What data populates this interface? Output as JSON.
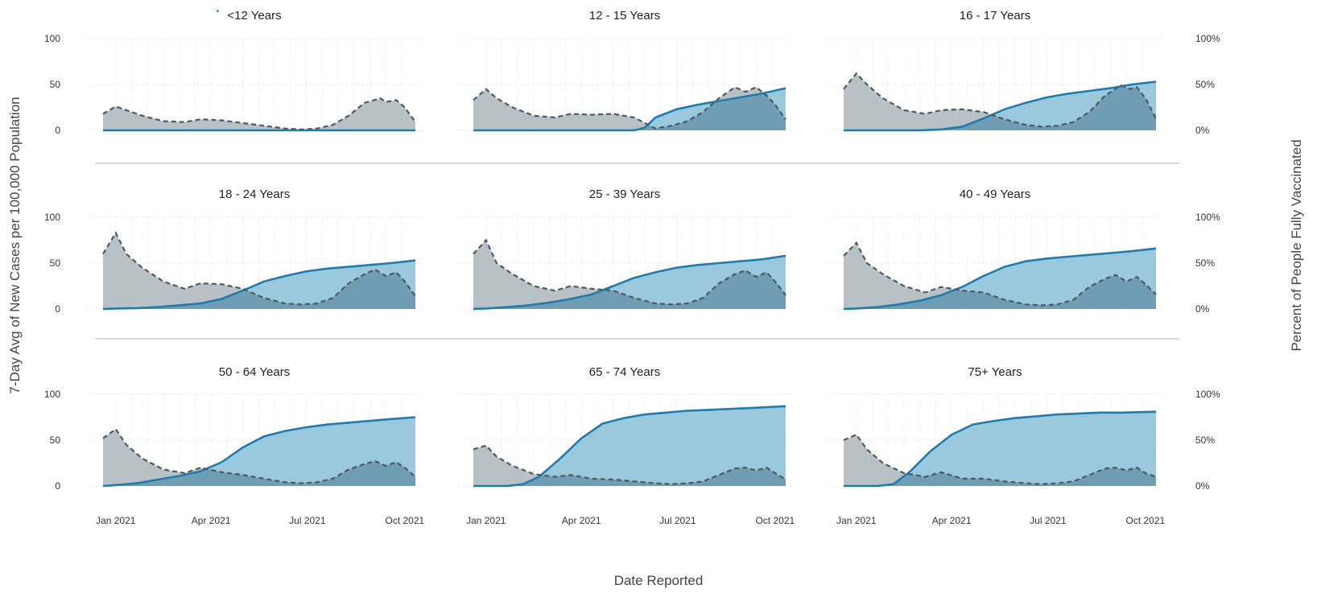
{
  "chart_data": {
    "type": "area",
    "x_axis_title": "Date Reported",
    "y_left_title": "7-Day Avg of New Cases per 100,000 Population",
    "y_right_title": "Percent of People Fully Vaccinated",
    "x_ticks": [
      "Jan 2021",
      "Apr 2021",
      "Jul 2021",
      "Oct 2021"
    ],
    "x_tick_positions": [
      0,
      90,
      181,
      273
    ],
    "y_left_ticks": [
      "0",
      "50",
      "100"
    ],
    "y_right_ticks": [
      "0%",
      "50%",
      "100%"
    ],
    "ylim_cases": [
      0,
      100
    ],
    "ylim_vaccinated_pct": [
      0,
      100
    ],
    "x_day_range": [
      -12,
      283
    ],
    "colors": {
      "cases_fill": "#aab6bc",
      "cases_line": "#4d5a62",
      "vacc_fill": "#8fc3da",
      "vacc_line": "#1f7cad",
      "overlap_fill": "#6f9db4",
      "grid": "#e6e6e6",
      "separator": "#c8c8c8"
    },
    "grid": true,
    "series_note": "x values are days since 1 Jan 2021",
    "panels": [
      {
        "title": "<12 Years",
        "title_marker": "*",
        "cases": {
          "x": [
            -12,
            0,
            10,
            25,
            45,
            65,
            80,
            100,
            120,
            140,
            160,
            175,
            190,
            205,
            220,
            235,
            250,
            255,
            265,
            273,
            283
          ],
          "y": [
            18,
            26,
            22,
            16,
            10,
            9,
            12,
            11,
            8,
            5,
            2,
            1,
            2,
            6,
            16,
            30,
            35,
            31,
            33,
            25,
            9
          ]
        },
        "vacc": {
          "x": [
            -12,
            283
          ],
          "y": [
            0,
            0
          ]
        }
      },
      {
        "title": "12 - 15 Years",
        "cases": {
          "x": [
            -12,
            0,
            10,
            25,
            45,
            65,
            80,
            100,
            120,
            140,
            150,
            160,
            175,
            190,
            205,
            220,
            235,
            245,
            255,
            265,
            273,
            283
          ],
          "y": [
            33,
            45,
            35,
            25,
            16,
            14,
            18,
            17,
            18,
            14,
            8,
            2,
            5,
            10,
            20,
            35,
            47,
            42,
            47,
            38,
            28,
            12
          ]
        },
        "vacc": {
          "x": [
            -12,
            140,
            150,
            160,
            180,
            200,
            220,
            240,
            260,
            283
          ],
          "y": [
            0,
            0,
            3,
            14,
            23,
            28,
            32,
            36,
            40,
            46
          ]
        }
      },
      {
        "title": "16 - 17 Years",
        "cases": {
          "x": [
            -12,
            0,
            10,
            25,
            45,
            65,
            80,
            100,
            120,
            140,
            160,
            175,
            190,
            205,
            220,
            235,
            250,
            258,
            265,
            273,
            283
          ],
          "y": [
            45,
            62,
            50,
            35,
            22,
            18,
            22,
            23,
            20,
            12,
            6,
            4,
            5,
            9,
            20,
            38,
            49,
            45,
            47,
            35,
            13
          ]
        },
        "vacc": {
          "x": [
            -12,
            60,
            80,
            100,
            120,
            140,
            160,
            180,
            200,
            220,
            240,
            260,
            283
          ],
          "y": [
            0,
            0,
            1,
            4,
            13,
            23,
            30,
            36,
            40,
            43,
            46,
            50,
            53
          ]
        }
      },
      {
        "title": "18 - 24 Years",
        "cases": {
          "x": [
            -12,
            0,
            10,
            25,
            45,
            65,
            80,
            100,
            120,
            140,
            160,
            175,
            190,
            205,
            220,
            235,
            245,
            255,
            265,
            273,
            283
          ],
          "y": [
            60,
            83,
            60,
            45,
            30,
            22,
            28,
            27,
            22,
            12,
            6,
            5,
            6,
            12,
            28,
            38,
            43,
            36,
            40,
            30,
            14
          ]
        },
        "vacc": {
          "x": [
            -12,
            0,
            20,
            40,
            60,
            80,
            100,
            120,
            140,
            160,
            180,
            200,
            220,
            240,
            260,
            283
          ],
          "y": [
            0,
            0.5,
            1,
            2,
            4,
            6,
            11,
            20,
            30,
            36,
            41,
            44,
            46,
            48,
            50,
            53
          ]
        }
      },
      {
        "title": "25 - 39 Years",
        "cases": {
          "x": [
            -12,
            0,
            10,
            25,
            45,
            65,
            80,
            100,
            120,
            140,
            160,
            175,
            190,
            205,
            220,
            235,
            245,
            255,
            265,
            273,
            283
          ],
          "y": [
            60,
            75,
            50,
            38,
            25,
            20,
            25,
            22,
            20,
            12,
            6,
            5,
            6,
            12,
            28,
            38,
            42,
            35,
            40,
            30,
            15
          ]
        },
        "vacc": {
          "x": [
            -12,
            0,
            20,
            40,
            60,
            80,
            100,
            120,
            140,
            160,
            180,
            200,
            220,
            240,
            260,
            283
          ],
          "y": [
            0,
            0.5,
            2,
            4,
            7,
            11,
            16,
            25,
            34,
            40,
            45,
            48,
            50,
            52,
            54,
            58
          ]
        }
      },
      {
        "title": "40 - 49 Years",
        "cases": {
          "x": [
            -12,
            0,
            10,
            25,
            45,
            65,
            80,
            100,
            120,
            140,
            160,
            175,
            190,
            205,
            220,
            235,
            245,
            255,
            265,
            273,
            283
          ],
          "y": [
            58,
            72,
            50,
            38,
            25,
            18,
            24,
            20,
            18,
            10,
            5,
            4,
            5,
            10,
            24,
            33,
            37,
            30,
            35,
            27,
            16
          ]
        },
        "vacc": {
          "x": [
            -12,
            0,
            20,
            40,
            60,
            80,
            100,
            120,
            140,
            160,
            180,
            200,
            220,
            240,
            260,
            283
          ],
          "y": [
            0,
            0.5,
            2,
            5,
            9,
            15,
            24,
            36,
            46,
            52,
            55,
            57,
            59,
            61,
            63,
            66
          ]
        }
      },
      {
        "title": "50 - 64 Years",
        "cases": {
          "x": [
            -12,
            0,
            10,
            25,
            45,
            65,
            80,
            100,
            120,
            140,
            160,
            175,
            190,
            205,
            220,
            235,
            245,
            255,
            265,
            273,
            283
          ],
          "y": [
            52,
            62,
            45,
            30,
            18,
            14,
            20,
            15,
            12,
            8,
            4,
            3,
            4,
            8,
            18,
            24,
            27,
            22,
            26,
            20,
            10
          ]
        },
        "vacc": {
          "x": [
            -12,
            0,
            20,
            40,
            60,
            80,
            100,
            120,
            140,
            160,
            180,
            200,
            220,
            240,
            260,
            283
          ],
          "y": [
            0,
            1,
            3,
            7,
            11,
            16,
            26,
            42,
            54,
            60,
            64,
            67,
            69,
            71,
            73,
            75
          ]
        }
      },
      {
        "title": "65 - 74 Years",
        "cases": {
          "x": [
            -12,
            0,
            10,
            25,
            45,
            65,
            80,
            100,
            120,
            140,
            160,
            175,
            190,
            205,
            220,
            235,
            245,
            255,
            265,
            273,
            283
          ],
          "y": [
            40,
            44,
            32,
            22,
            13,
            10,
            12,
            8,
            7,
            5,
            3,
            2,
            3,
            5,
            12,
            19,
            20,
            17,
            20,
            14,
            7
          ]
        },
        "vacc": {
          "x": [
            -12,
            20,
            35,
            50,
            70,
            90,
            110,
            130,
            150,
            170,
            190,
            210,
            230,
            250,
            283
          ],
          "y": [
            0,
            0,
            2,
            10,
            30,
            52,
            68,
            74,
            78,
            80,
            82,
            83,
            84,
            85,
            87
          ]
        }
      },
      {
        "title": "75+ Years",
        "cases": {
          "x": [
            -12,
            0,
            10,
            25,
            45,
            65,
            80,
            100,
            120,
            140,
            160,
            175,
            190,
            205,
            220,
            235,
            245,
            255,
            265,
            273,
            283
          ],
          "y": [
            50,
            56,
            40,
            25,
            14,
            10,
            15,
            8,
            8,
            5,
            3,
            2,
            3,
            5,
            12,
            19,
            20,
            17,
            20,
            14,
            10
          ]
        },
        "vacc": {
          "x": [
            -12,
            20,
            35,
            50,
            70,
            90,
            110,
            130,
            150,
            170,
            190,
            210,
            230,
            250,
            283
          ],
          "y": [
            0,
            0,
            2,
            15,
            38,
            56,
            67,
            71,
            74,
            76,
            78,
            79,
            80,
            80,
            81
          ]
        }
      }
    ]
  }
}
